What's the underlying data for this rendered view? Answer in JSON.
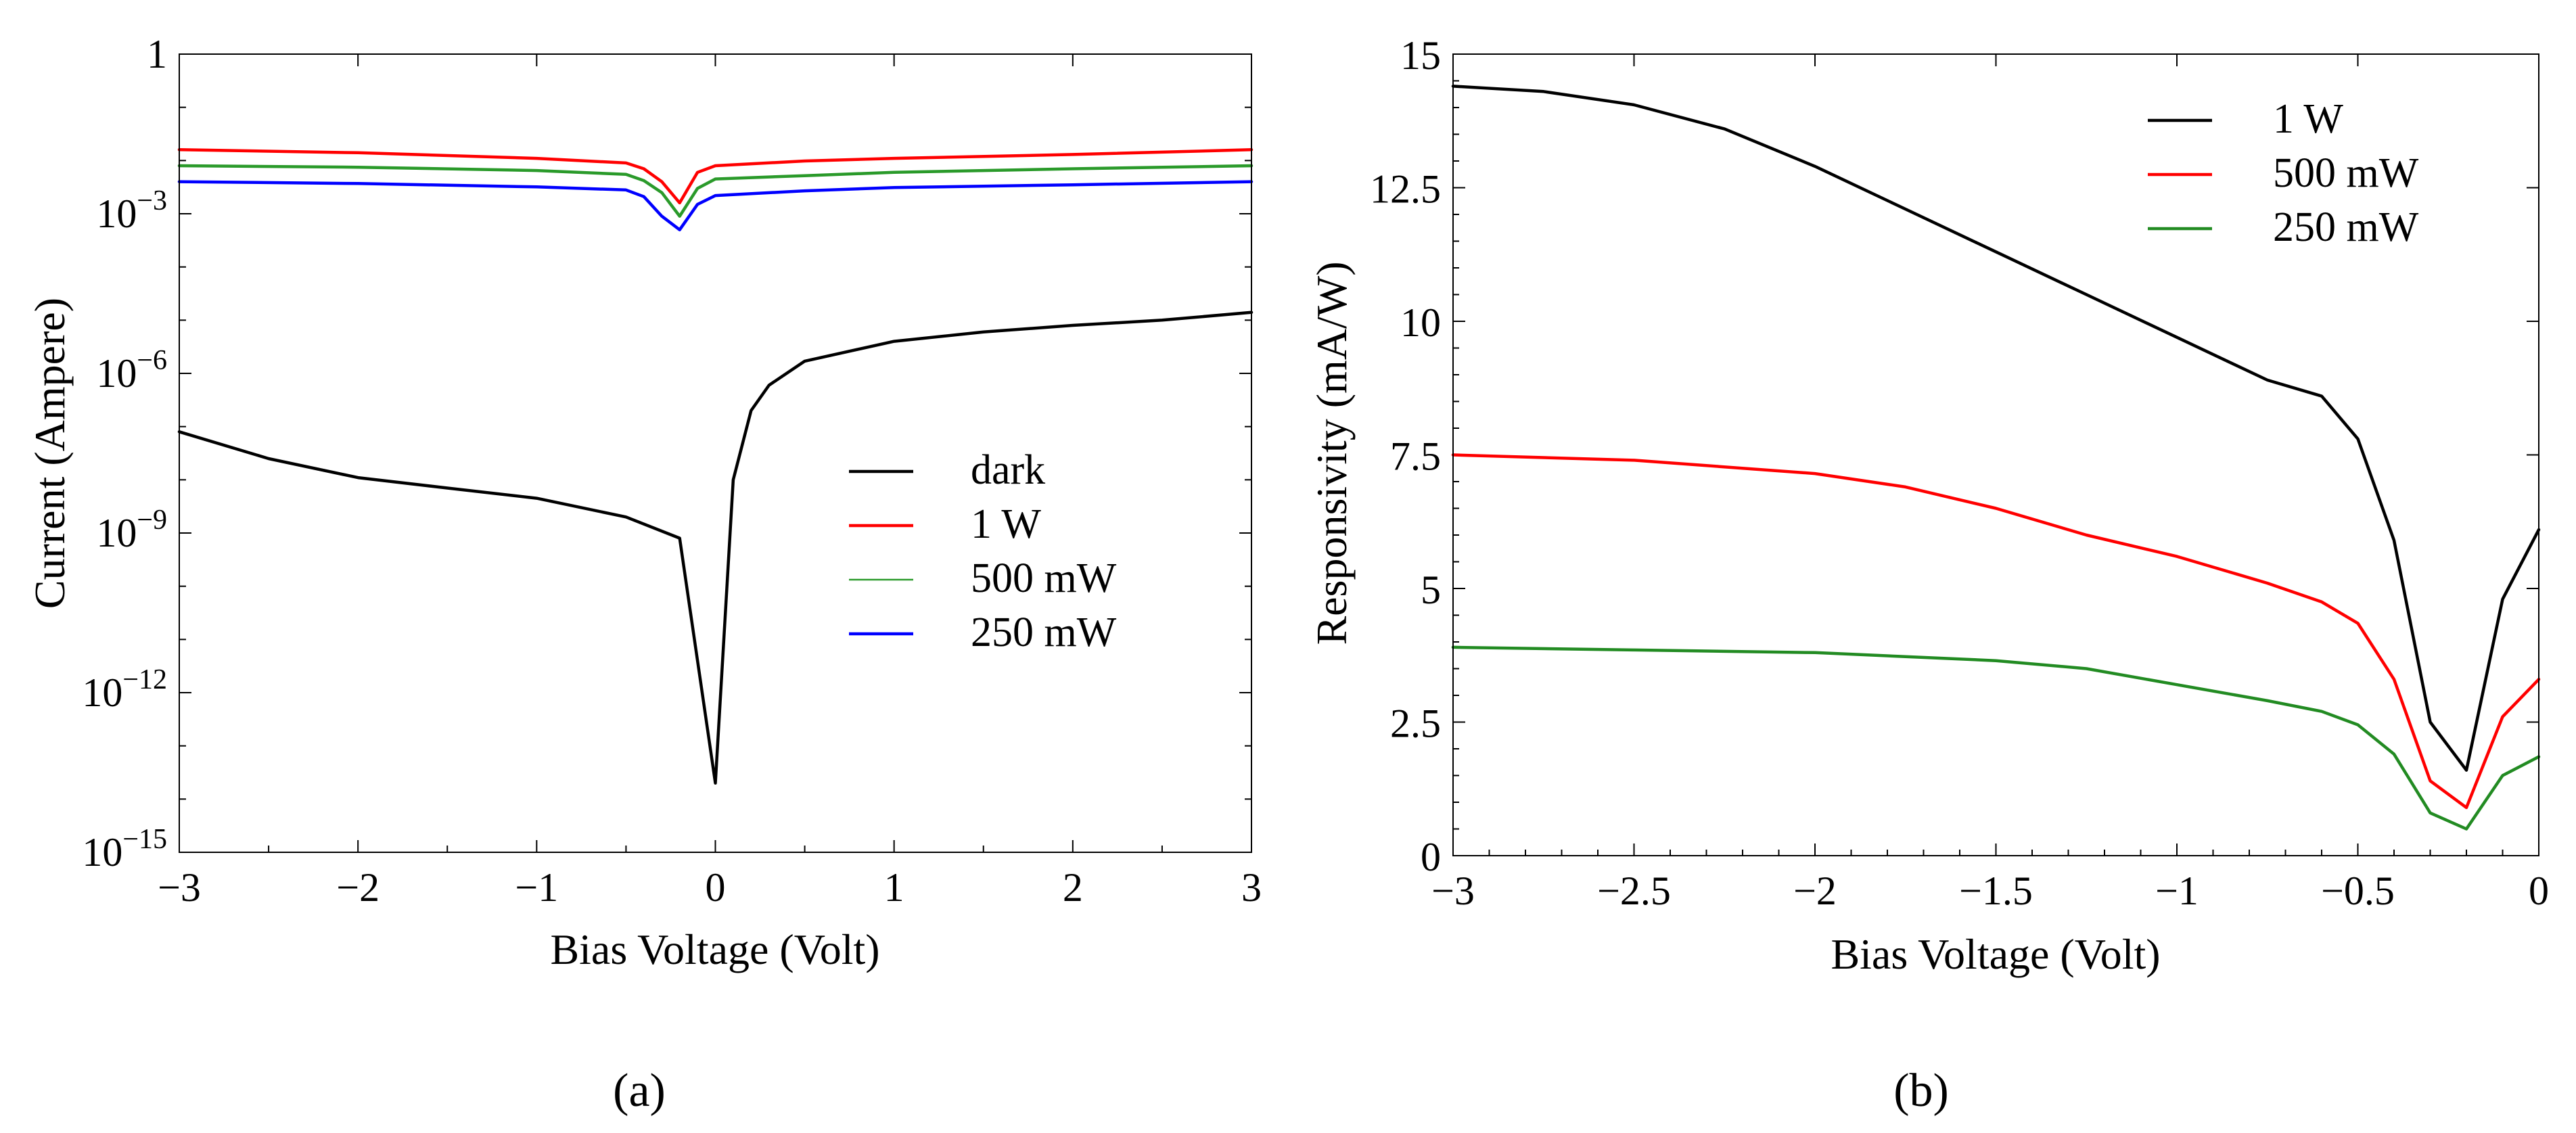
{
  "chart_data": [
    {
      "id": "a",
      "type": "line",
      "panel_label": "(a)",
      "xlabel": "Bias Voltage (Volt)",
      "ylabel": "Current (Ampere)",
      "yscale": "log",
      "xlim": [
        -3,
        3
      ],
      "ylim_exp": [
        -15,
        0
      ],
      "x_ticks": [
        "−3",
        "−2",
        "−1",
        "0",
        "1",
        "2",
        "3"
      ],
      "y_ticks": [
        {
          "exp": 0,
          "base": "1",
          "sup": ""
        },
        {
          "exp": -3,
          "base": "10",
          "sup": "−3"
        },
        {
          "exp": -6,
          "base": "10",
          "sup": "−6"
        },
        {
          "exp": -9,
          "base": "10",
          "sup": "−9"
        },
        {
          "exp": -12,
          "base": "10",
          "sup": "−12"
        },
        {
          "exp": -15,
          "base": "10",
          "sup": "−15"
        }
      ],
      "legend_position": "center-right",
      "series": [
        {
          "name": "dark",
          "color": "#000000",
          "x": [
            -3,
            -2.5,
            -2,
            -1.5,
            -1,
            -0.5,
            -0.2,
            0,
            0.1,
            0.2,
            0.3,
            0.5,
            1,
            1.5,
            2,
            2.5,
            3
          ],
          "y": [
            8e-08,
            2.5e-08,
            1.1e-08,
            7e-09,
            4.5e-09,
            2e-09,
            8e-10,
            2e-14,
            1e-08,
            2e-07,
            6e-07,
            1.7e-06,
            4e-06,
            6e-06,
            8e-06,
            1e-05,
            1.4e-05
          ]
        },
        {
          "name": "1 W",
          "color": "#ff0000",
          "x": [
            -3,
            -2,
            -1,
            -0.5,
            -0.4,
            -0.3,
            -0.2,
            -0.1,
            0,
            0.5,
            1,
            2,
            3
          ],
          "y": [
            0.016,
            0.014,
            0.011,
            0.009,
            0.007,
            0.004,
            0.0016,
            0.006,
            0.008,
            0.0098,
            0.011,
            0.013,
            0.016
          ]
        },
        {
          "name": "500 mW",
          "color": "#2a9a2a",
          "x": [
            -3,
            -2,
            -1,
            -0.5,
            -0.4,
            -0.3,
            -0.2,
            -0.1,
            0,
            0.5,
            1,
            2,
            3
          ],
          "y": [
            0.008,
            0.0075,
            0.0065,
            0.0055,
            0.0042,
            0.0025,
            0.0009,
            0.003,
            0.0045,
            0.0052,
            0.006,
            0.007,
            0.008
          ]
        },
        {
          "name": "250 mW",
          "color": "#0000ff",
          "x": [
            -3,
            -2,
            -1,
            -0.5,
            -0.4,
            -0.3,
            -0.2,
            -0.1,
            0,
            0.5,
            1,
            2,
            3
          ],
          "y": [
            0.004,
            0.0037,
            0.0032,
            0.0028,
            0.0021,
            0.0009,
            0.0005,
            0.0015,
            0.0022,
            0.0027,
            0.0031,
            0.0035,
            0.004
          ]
        }
      ]
    },
    {
      "id": "b",
      "type": "line",
      "panel_label": "(b)",
      "xlabel": "Bias Voltage (Volt)",
      "ylabel": "Responsivity (mA/W)",
      "yscale": "linear",
      "xlim": [
        -3,
        0
      ],
      "ylim": [
        0,
        15
      ],
      "x_tick_values": [
        -3,
        -2.5,
        -2,
        -1.5,
        -1,
        -0.5,
        0
      ],
      "x_ticks": [
        "−3",
        "−2.5",
        "−2",
        "−1.5",
        "−1",
        "−0.5",
        "0"
      ],
      "y_tick_values": [
        0,
        2.5,
        5,
        7.5,
        10,
        12.5,
        15
      ],
      "y_ticks": [
        "0",
        "2.5",
        "5",
        "7.5",
        "10",
        "12.5",
        "15"
      ],
      "legend_position": "top-right",
      "series": [
        {
          "name": "1 W",
          "color": "#000000",
          "x": [
            -3,
            -2.75,
            -2.5,
            -2.25,
            -2,
            -1.75,
            -1.5,
            -1.25,
            -1,
            -0.75,
            -0.6,
            -0.5,
            -0.4,
            -0.3,
            -0.2,
            -0.1,
            0
          ],
          "y": [
            14.4,
            14.3,
            14.05,
            13.6,
            12.9,
            12.1,
            11.3,
            10.5,
            9.7,
            8.9,
            8.6,
            7.8,
            5.9,
            2.5,
            1.6,
            4.8,
            6.1
          ]
        },
        {
          "name": "500 mW",
          "color": "#ff0000",
          "x": [
            -3,
            -2.5,
            -2,
            -1.75,
            -1.5,
            -1.25,
            -1,
            -0.75,
            -0.6,
            -0.5,
            -0.4,
            -0.3,
            -0.2,
            -0.1,
            0
          ],
          "y": [
            7.5,
            7.4,
            7.15,
            6.9,
            6.5,
            6.0,
            5.6,
            5.1,
            4.75,
            4.35,
            3.3,
            1.4,
            0.9,
            2.6,
            3.3
          ]
        },
        {
          "name": "250 mW",
          "color": "#228b22",
          "x": [
            -3,
            -2.5,
            -2,
            -1.5,
            -1.25,
            -1,
            -0.75,
            -0.6,
            -0.5,
            -0.4,
            -0.3,
            -0.2,
            -0.1,
            0
          ],
          "y": [
            3.9,
            3.85,
            3.8,
            3.65,
            3.5,
            3.2,
            2.9,
            2.7,
            2.45,
            1.9,
            0.8,
            0.5,
            1.5,
            1.85
          ]
        }
      ]
    }
  ]
}
